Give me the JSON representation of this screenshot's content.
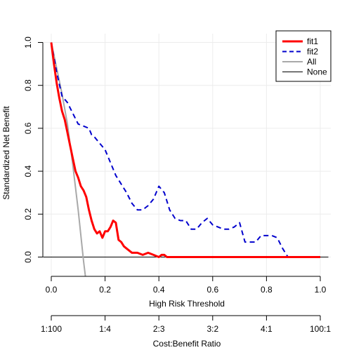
{
  "chart_data": {
    "type": "line",
    "title": "",
    "xlabel": "High Risk Threshold",
    "ylabel": "Standardized Net Benefit",
    "xlim": [
      0,
      1
    ],
    "ylim": [
      -0.09,
      1.03
    ],
    "x_ticks": [
      0.0,
      0.2,
      0.4,
      0.6,
      0.8,
      1.0
    ],
    "x_tick_labels": [
      "0.0",
      "0.2",
      "0.4",
      "0.6",
      "0.8",
      "1.0"
    ],
    "y_ticks": [
      0.0,
      0.2,
      0.4,
      0.6,
      0.8,
      1.0
    ],
    "y_tick_labels": [
      "0.0",
      "0.2",
      "0.4",
      "0.6",
      "0.8",
      "1.0"
    ],
    "grid": true,
    "legend_position": "top-right",
    "secondary_axis": {
      "label": "Cost:Benefit Ratio",
      "ticks": [
        0.0,
        0.2,
        0.4,
        0.6,
        0.8,
        1.0
      ],
      "tick_labels": [
        "1:100",
        "1:4",
        "2:3",
        "3:2",
        "4:1",
        "100:1"
      ]
    },
    "series": [
      {
        "name": "fit1",
        "color": "#ff0000",
        "style": "solid-thick",
        "x": [
          0.0,
          0.01,
          0.02,
          0.03,
          0.04,
          0.05,
          0.06,
          0.07,
          0.08,
          0.09,
          0.1,
          0.11,
          0.12,
          0.13,
          0.14,
          0.15,
          0.16,
          0.17,
          0.18,
          0.19,
          0.2,
          0.21,
          0.22,
          0.23,
          0.24,
          0.25,
          0.26,
          0.27,
          0.28,
          0.3,
          0.32,
          0.34,
          0.36,
          0.38,
          0.4,
          0.41,
          0.42,
          0.43,
          0.44,
          0.5,
          0.6,
          0.7,
          0.8,
          0.9,
          1.0
        ],
        "y": [
          1.0,
          0.9,
          0.81,
          0.74,
          0.68,
          0.64,
          0.58,
          0.52,
          0.46,
          0.4,
          0.37,
          0.33,
          0.31,
          0.28,
          0.22,
          0.17,
          0.13,
          0.11,
          0.12,
          0.09,
          0.12,
          0.12,
          0.14,
          0.17,
          0.16,
          0.08,
          0.07,
          0.05,
          0.04,
          0.02,
          0.02,
          0.01,
          0.02,
          0.01,
          0.0,
          0.01,
          0.01,
          0.0,
          0.0,
          0.0,
          0.0,
          0.0,
          0.0,
          0.0,
          0.0
        ]
      },
      {
        "name": "fit2",
        "color": "#0000cd",
        "style": "dashed",
        "x": [
          0.0,
          0.02,
          0.04,
          0.06,
          0.08,
          0.1,
          0.12,
          0.14,
          0.15,
          0.16,
          0.18,
          0.2,
          0.22,
          0.24,
          0.26,
          0.28,
          0.3,
          0.32,
          0.34,
          0.36,
          0.38,
          0.4,
          0.42,
          0.44,
          0.46,
          0.48,
          0.5,
          0.52,
          0.54,
          0.56,
          0.58,
          0.6,
          0.62,
          0.64,
          0.66,
          0.68,
          0.7,
          0.72,
          0.74,
          0.76,
          0.78,
          0.8,
          0.82,
          0.84,
          0.86,
          0.88,
          0.9,
          1.0
        ],
        "y": [
          1.0,
          0.86,
          0.75,
          0.72,
          0.67,
          0.62,
          0.61,
          0.6,
          0.57,
          0.56,
          0.53,
          0.5,
          0.44,
          0.38,
          0.34,
          0.3,
          0.25,
          0.22,
          0.22,
          0.24,
          0.27,
          0.33,
          0.3,
          0.22,
          0.18,
          0.17,
          0.17,
          0.13,
          0.13,
          0.16,
          0.18,
          0.15,
          0.14,
          0.13,
          0.13,
          0.14,
          0.16,
          0.07,
          0.07,
          0.07,
          0.1,
          0.1,
          0.1,
          0.09,
          0.04,
          0.0,
          0.0,
          0.0
        ]
      },
      {
        "name": "All",
        "color": "#a9a9a9",
        "style": "solid",
        "x": [
          0.0,
          0.02,
          0.04,
          0.06,
          0.08,
          0.1,
          0.12,
          0.127
        ],
        "y": [
          1.0,
          0.88,
          0.76,
          0.62,
          0.43,
          0.22,
          -0.02,
          -0.09
        ]
      },
      {
        "name": "None",
        "color": "#000000",
        "style": "solid-thin",
        "x": [
          -0.03,
          1.03
        ],
        "y": [
          0.0,
          0.0
        ]
      }
    ]
  }
}
